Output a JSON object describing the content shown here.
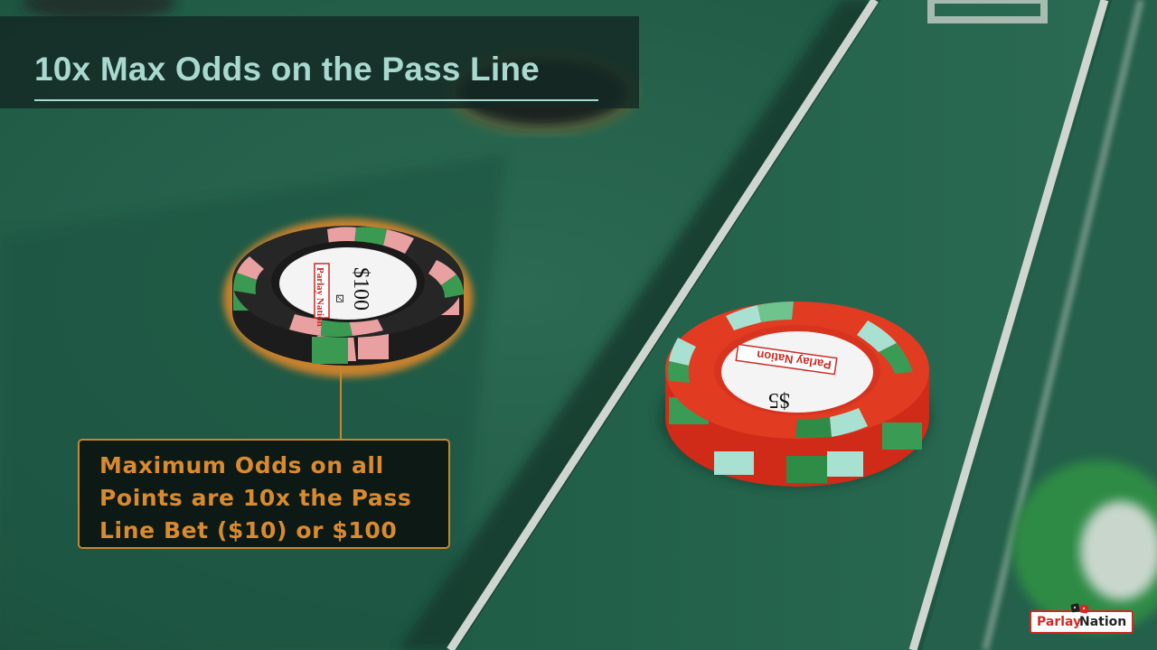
{
  "title": "10x Max Odds on the Pass Line",
  "callout": "Maximum Odds on all Points are 10x the Pass Line Bet ($10) or $100",
  "chip_black": {
    "denomination": "$100",
    "brand": "Parlay Nation"
  },
  "chip_red": {
    "denomination": "$5",
    "brand": "Parlay Nation"
  },
  "logo": {
    "word1": "Parlay",
    "word2": "Nation"
  },
  "colors": {
    "felt": "#1f5a45",
    "accent": "#c9862e",
    "title": "#a8d9cf",
    "brand_red": "#d32a25"
  }
}
